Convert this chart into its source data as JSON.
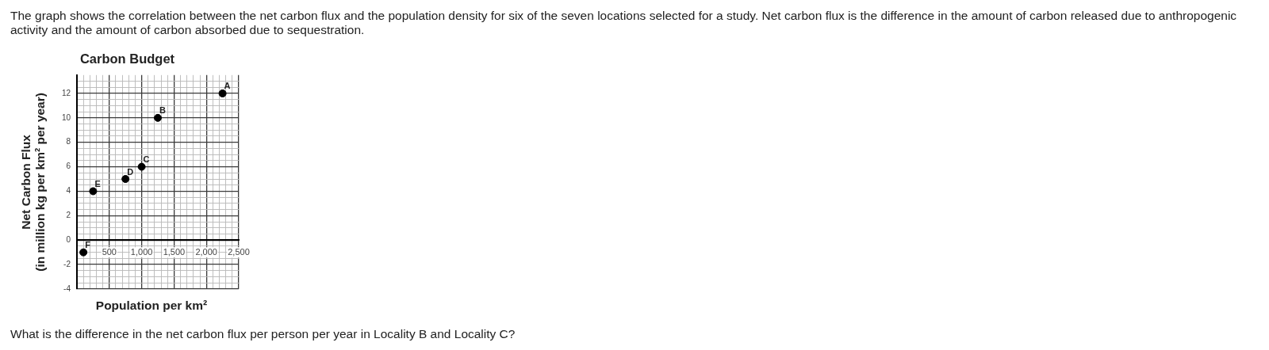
{
  "chart_data": {
    "type": "scatter",
    "title": "Carbon Budget",
    "xlabel": "Population per km²",
    "ylabel": "Net Carbon Flux\n(in million kg per km² per year)",
    "x": [
      2250,
      1250,
      1000,
      750,
      250,
      100
    ],
    "series": [
      {
        "color": "#000000",
        "values": [
          12,
          10,
          6,
          5,
          4,
          -1
        ]
      }
    ],
    "xlim": [
      0,
      2500
    ],
    "xticks": [
      {
        "value": 0,
        "label": null
      },
      {
        "value": 100,
        "label": null
      },
      {
        "value": 200,
        "label": null
      },
      {
        "value": 300,
        "label": null
      },
      {
        "value": 400,
        "label": null
      },
      500,
      {
        "value": 600,
        "label": null
      },
      {
        "value": 700,
        "label": null
      },
      {
        "value": 800,
        "label": null
      },
      {
        "value": 900,
        "label": null
      },
      {
        "value": 1000,
        "label": "1,000"
      },
      {
        "value": 1100,
        "label": null
      },
      {
        "value": 1200,
        "label": null
      },
      {
        "value": 1300,
        "label": null
      },
      {
        "value": 1400,
        "label": null
      },
      {
        "value": 1500,
        "label": "1,500"
      },
      {
        "value": 1600,
        "label": null
      },
      {
        "value": 1700,
        "label": null
      },
      {
        "value": 1800,
        "label": null
      },
      {
        "value": 1900,
        "label": null
      },
      {
        "value": 2000,
        "label": "2,000"
      },
      {
        "value": 2100,
        "label": null
      },
      {
        "value": 2200,
        "label": null
      },
      {
        "value": 2300,
        "label": null
      },
      {
        "value": 2400,
        "label": null
      },
      {
        "value": 2500,
        "label": "2,500"
      }
    ],
    "ylim": [
      -4,
      13.5
    ],
    "yticks": [
      -4,
      {
        "value": -3.5,
        "label": null
      },
      {
        "value": -3,
        "label": null
      },
      {
        "value": -2.5,
        "label": null
      },
      -2,
      {
        "value": -1.5,
        "label": null
      },
      {
        "value": -1,
        "label": null
      },
      {
        "value": -0.5,
        "label": null
      },
      0,
      {
        "value": 0.5,
        "label": null
      },
      {
        "value": 1,
        "label": null
      },
      {
        "value": 1.5,
        "label": null
      },
      2,
      {
        "value": 2.5,
        "label": null
      },
      {
        "value": 3,
        "label": null
      },
      {
        "value": 3.5,
        "label": null
      },
      4,
      {
        "value": 4.5,
        "label": null
      },
      {
        "value": 5,
        "label": null
      },
      {
        "value": 5.5,
        "label": null
      },
      6,
      {
        "value": 6.5,
        "label": null
      },
      {
        "value": 7,
        "label": null
      },
      {
        "value": 7.5,
        "label": null
      },
      8,
      {
        "value": 8.5,
        "label": null
      },
      {
        "value": 9,
        "label": null
      },
      {
        "value": 9.5,
        "label": null
      },
      10,
      {
        "value": 10.5,
        "label": null
      },
      {
        "value": 11,
        "label": null
      },
      {
        "value": 11.5,
        "label": null
      },
      12,
      {
        "value": 12.5,
        "label": null
      },
      {
        "value": 13,
        "label": null
      }
    ],
    "grid": true,
    "marker": "circle",
    "annotations": [
      "The graph shows the correlation between the net carbon flux and the population density for six of the seven locations selected for a study. Net carbon flux is the difference in the amount of carbon released due to anthropogenic activity and the amount of carbon absorbed due to sequestration.",
      {
        "text": "A",
        "x": 2250,
        "y": 12
      },
      {
        "text": "B",
        "x": 1250,
        "y": 10
      },
      {
        "text": "C",
        "x": 1000,
        "y": 6
      },
      {
        "text": "D",
        "x": 750,
        "y": 5
      },
      {
        "text": "E",
        "x": 250,
        "y": 4
      },
      {
        "text": "F",
        "x": 100,
        "y": -1
      },
      "What is the difference in the net carbon flux per person per year in Locality B and Locality C?"
    ]
  }
}
